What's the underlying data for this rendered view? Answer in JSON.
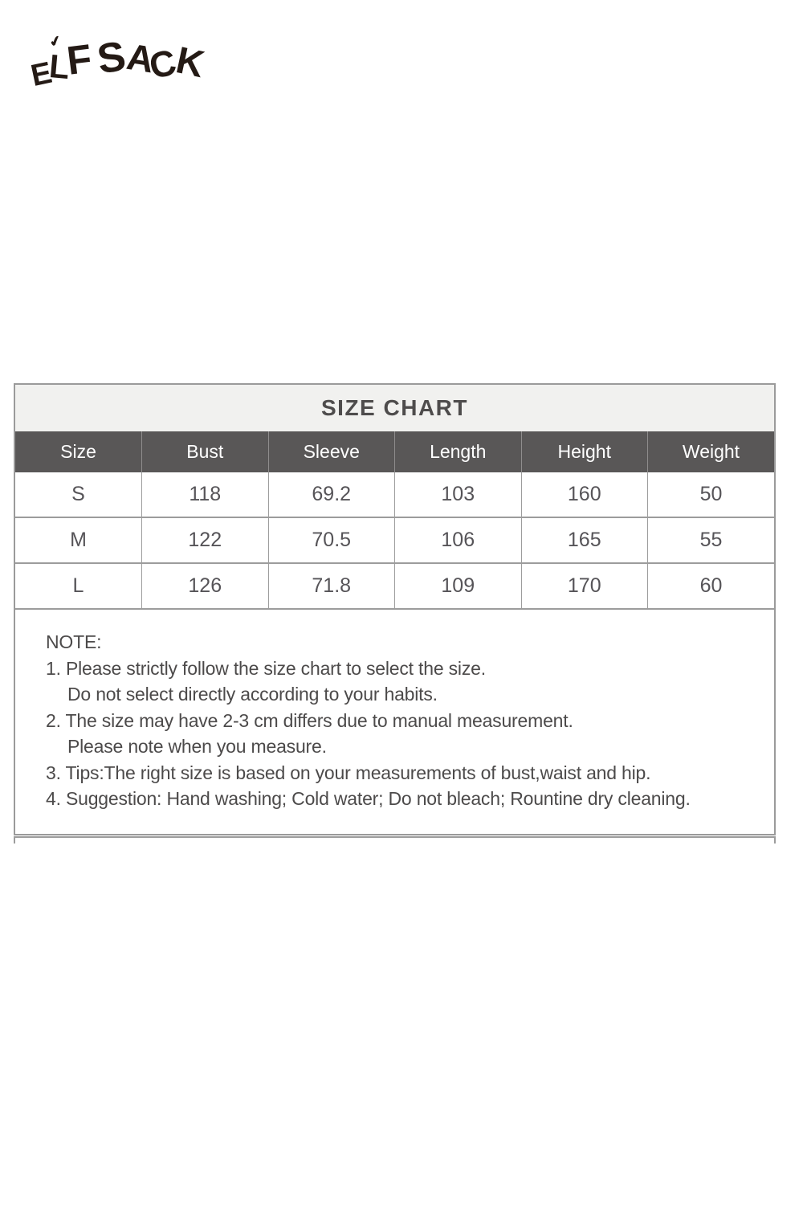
{
  "brand": {
    "logo_text": "ELF SACK",
    "logo_accent": "✔",
    "logo_color": "#241a15"
  },
  "size_chart": {
    "title": "SIZE CHART",
    "columns": [
      "Size",
      "Bust",
      "Sleeve",
      "Length",
      "Height",
      "Weight"
    ],
    "rows": [
      [
        "S",
        "118",
        "69.2",
        "103",
        "160",
        "50"
      ],
      [
        "M",
        "122",
        "70.5",
        "106",
        "165",
        "55"
      ],
      [
        "L",
        "126",
        "71.8",
        "109",
        "170",
        "60"
      ]
    ]
  },
  "notes": {
    "heading": "NOTE:",
    "lines": [
      {
        "text": "1. Please strictly follow the size chart to select the size.",
        "indent": false
      },
      {
        "text": "Do not select directly according to your habits.",
        "indent": true
      },
      {
        "text": "2. The size may have 2-3 cm differs due to manual measurement.",
        "indent": false
      },
      {
        "text": "Please note when you measure.",
        "indent": true
      },
      {
        "text": "3. Tips:The right size is based on your measurements of bust,waist and hip.",
        "indent": false
      },
      {
        "text": "4. Suggestion: Hand washing; Cold water; Do not bleach; Rountine dry cleaning.",
        "indent": false
      }
    ]
  },
  "colors": {
    "header_background": "#595757",
    "title_background": "#f1f1ef",
    "border_gray": "#9c9c9c",
    "text_gray": "#4c4a4a"
  }
}
